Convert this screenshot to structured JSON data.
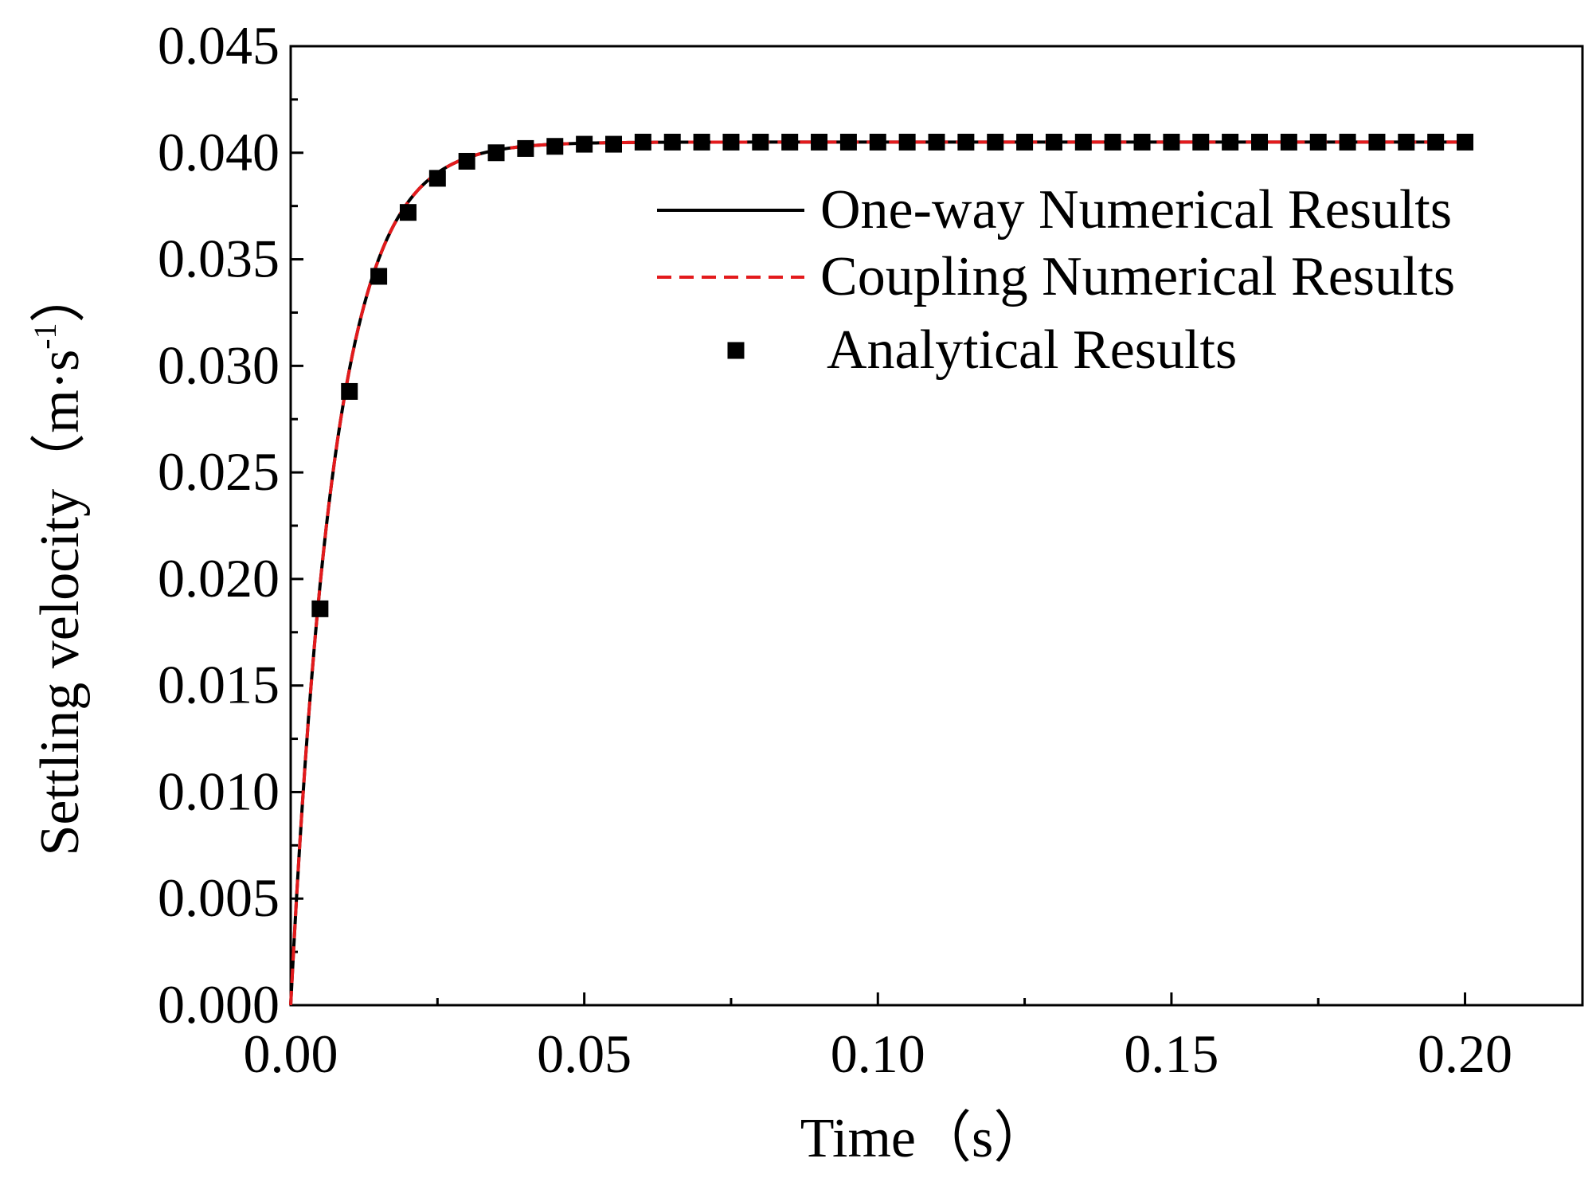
{
  "chart_data": {
    "type": "line",
    "title": "",
    "xlabel": "Time（s）",
    "ylabel_main": "Settling velocity（m·s",
    "ylabel_sup": "-1",
    "ylabel_close": "）",
    "xlim": [
      0.0,
      0.22
    ],
    "ylim": [
      0.0,
      0.045
    ],
    "x_ticks": [
      0.0,
      0.05,
      0.1,
      0.15,
      0.2
    ],
    "x_tick_labels": [
      "0.00",
      "0.05",
      "0.10",
      "0.15",
      "0.20"
    ],
    "y_ticks": [
      0.0,
      0.005,
      0.01,
      0.015,
      0.02,
      0.025,
      0.03,
      0.035,
      0.04,
      0.045
    ],
    "y_tick_labels": [
      "0.000",
      "0.005",
      "0.010",
      "0.015",
      "0.020",
      "0.025",
      "0.030",
      "0.035",
      "0.040",
      "0.045"
    ],
    "grid": false,
    "legend_position": "top-right",
    "curve_model": {
      "terminal_velocity": 0.0405,
      "time_constant": 0.0075,
      "t_max": 0.2
    },
    "series": [
      {
        "name": "One-way Numerical Results",
        "style": "solid-line",
        "color": "#000000"
      },
      {
        "name": "Coupling Numerical Results",
        "style": "dashed-line",
        "color": "#e31a1c"
      },
      {
        "name": "Analytical Results",
        "style": "square-markers",
        "color": "#000000",
        "x": [
          0.005,
          0.01,
          0.015,
          0.02,
          0.025,
          0.03,
          0.035,
          0.04,
          0.045,
          0.05,
          0.055,
          0.06,
          0.065,
          0.07,
          0.075,
          0.08,
          0.085,
          0.09,
          0.095,
          0.1,
          0.105,
          0.11,
          0.115,
          0.12,
          0.125,
          0.13,
          0.135,
          0.14,
          0.145,
          0.15,
          0.155,
          0.16,
          0.165,
          0.17,
          0.175,
          0.18,
          0.185,
          0.19,
          0.195,
          0.2
        ],
        "y": [
          0.0186,
          0.0288,
          0.0342,
          0.0372,
          0.0388,
          0.0396,
          0.04,
          0.0402,
          0.0403,
          0.0404,
          0.0404,
          0.0405,
          0.0405,
          0.0405,
          0.0405,
          0.0405,
          0.0405,
          0.0405,
          0.0405,
          0.0405,
          0.0405,
          0.0405,
          0.0405,
          0.0405,
          0.0405,
          0.0405,
          0.0405,
          0.0405,
          0.0405,
          0.0405,
          0.0405,
          0.0405,
          0.0405,
          0.0405,
          0.0405,
          0.0405,
          0.0405,
          0.0405,
          0.0405,
          0.0405
        ]
      }
    ]
  }
}
